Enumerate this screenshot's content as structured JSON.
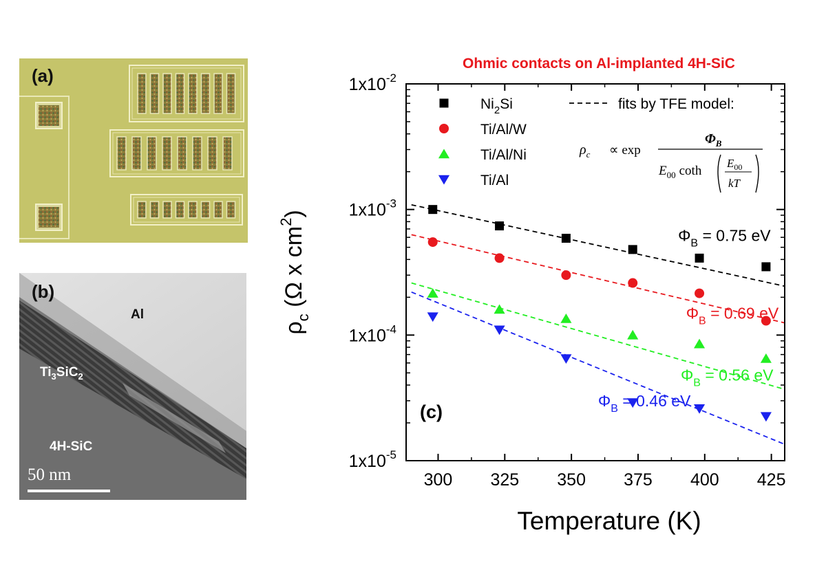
{
  "panel_a": {
    "label": "(a)"
  },
  "panel_b": {
    "label": "(b)",
    "layer_labels": {
      "al": "Al",
      "ti3sic2_main": "Ti",
      "ti3sic2_sub": "3",
      "ti3sic2_mid": "SiC",
      "ti3sic2_sub2": "2",
      "sic": "4H-SiC"
    },
    "scale_bar_text": "50 nm"
  },
  "chart_data": {
    "type": "scatter",
    "title": "Ohmic contacts on Al-implanted 4H-SiC",
    "title_color": "#e8191e",
    "panel_label": "(c)",
    "xlabel": "Temperature (K)",
    "ylabel_main": "ρ",
    "ylabel_sub": "c",
    "ylabel_rest": " (Ω x cm",
    "ylabel_sup": "2",
    "ylabel_end": ")",
    "xlim": [
      288,
      430
    ],
    "ylim": [
      1e-05,
      0.01
    ],
    "yscale": "log",
    "x_ticks": [
      300,
      325,
      350,
      375,
      400,
      425
    ],
    "y_ticks": [
      {
        "value": 1e-05,
        "base": "1x10",
        "exp": "-5"
      },
      {
        "value": 0.0001,
        "base": "1x10",
        "exp": "-4"
      },
      {
        "value": 0.001,
        "base": "1x10",
        "exp": "-3"
      },
      {
        "value": 0.01,
        "base": "1x10",
        "exp": "-2"
      }
    ],
    "legend_position": "top-left",
    "fit_legend_text": "fits by TFE model:",
    "formula": {
      "lhs": "ρ",
      "lhs_sub": "c",
      "prop": "∝ exp",
      "num": "Φ",
      "num_sub": "B",
      "den_a": "E",
      "den_a_sub": "00",
      "den_coth": "coth",
      "den_frac_num": "E",
      "den_frac_num_sub": "00",
      "den_frac_den": "kT"
    },
    "series": [
      {
        "name_main": "Ni",
        "name_sub": "2",
        "name_rest": "Si",
        "marker": "square",
        "color": "#000000",
        "x": [
          298,
          323,
          348,
          373,
          398,
          423
        ],
        "y": [
          0.001,
          0.00074,
          0.00059,
          0.00048,
          0.00041,
          0.00035
        ],
        "fit": {
          "x": [
            290,
            430
          ],
          "y": [
            0.00109,
            0.000245
          ]
        },
        "fit_label": {
          "sym": "Φ",
          "sub": "B",
          "value": " = 0.75 eV",
          "x": 390,
          "y": 0.00056,
          "color": "#000000"
        }
      },
      {
        "name_main": "Ti/Al/W",
        "name_sub": "",
        "name_rest": "",
        "marker": "circle",
        "color": "#e8191e",
        "x": [
          298,
          323,
          348,
          373,
          398,
          423
        ],
        "y": [
          0.00055,
          0.00041,
          0.0003,
          0.00026,
          0.000215,
          0.00013
        ],
        "fit": {
          "x": [
            290,
            430
          ],
          "y": [
            0.00063,
            0.000125
          ]
        },
        "fit_label": {
          "sym": "Φ",
          "sub": "B",
          "value": " = 0.69 eV",
          "x": 393,
          "y": 0.000135,
          "color": "#e8191e"
        }
      },
      {
        "name_main": "Ti/Al/Ni",
        "name_sub": "",
        "name_rest": "",
        "marker": "triangle-up",
        "color": "#22ee22",
        "x": [
          298,
          323,
          348,
          373,
          398,
          423
        ],
        "y": [
          0.000215,
          0.00016,
          0.000135,
          0.0001,
          8.5e-05,
          6.5e-05
        ],
        "fit": {
          "x": [
            290,
            430
          ],
          "y": [
            0.00026,
            3.7e-05
          ]
        },
        "fit_label": {
          "sym": "Φ",
          "sub": "B",
          "value": " = 0.56 eV",
          "x": 391,
          "y": 4.35e-05,
          "color": "#22ee22"
        }
      },
      {
        "name_main": "Ti/Al",
        "name_sub": "",
        "name_rest": "",
        "marker": "triangle-down",
        "color": "#1a22ee",
        "x": [
          298,
          323,
          348,
          373,
          398,
          423
        ],
        "y": [
          0.00014,
          0.00011,
          6.5e-05,
          2.9e-05,
          2.6e-05,
          2.25e-05
        ],
        "fit": {
          "x": [
            290,
            430
          ],
          "y": [
            0.00022,
            1.35e-05
          ]
        },
        "fit_label": {
          "sym": "Φ",
          "sub": "B",
          "value": " = 0.46 eV",
          "x": 360,
          "y": 2.7e-05,
          "color": "#1a22ee"
        }
      }
    ]
  }
}
